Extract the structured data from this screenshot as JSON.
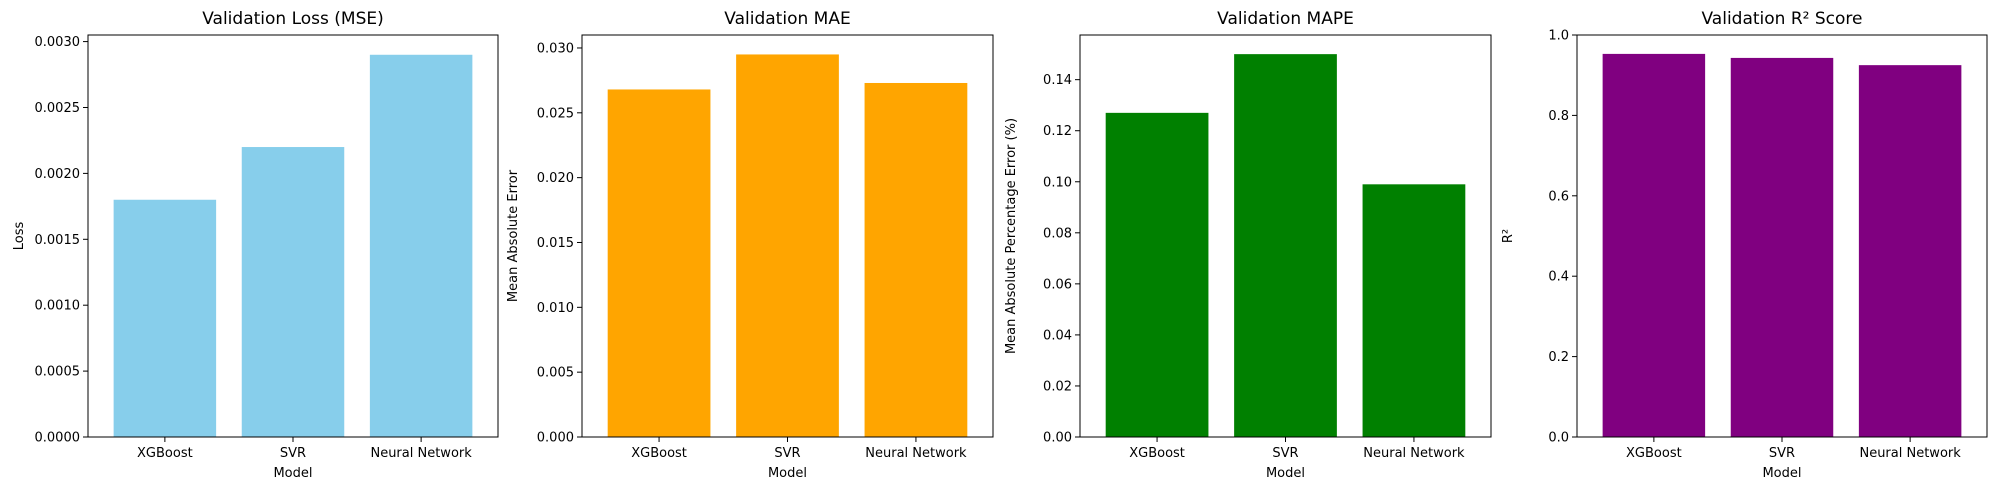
{
  "chart_data": [
    {
      "type": "bar",
      "title": "Validation Loss (MSE)",
      "xlabel": "Model",
      "ylabel": "Loss",
      "categories": [
        "XGBoost",
        "SVR",
        "Neural Network"
      ],
      "values": [
        0.0018,
        0.0022,
        0.0029
      ],
      "ylim": [
        0,
        0.00305
      ],
      "yticks": [
        "0.0000",
        "0.0005",
        "0.0010",
        "0.0015",
        "0.0020",
        "0.0025",
        "0.0030"
      ],
      "color": "#87ceeb",
      "grid": false
    },
    {
      "type": "bar",
      "title": "Validation MAE",
      "xlabel": "Model",
      "ylabel": "Mean Absolute Error",
      "categories": [
        "XGBoost",
        "SVR",
        "Neural Network"
      ],
      "values": [
        0.0268,
        0.0295,
        0.0273
      ],
      "ylim": [
        0,
        0.031
      ],
      "yticks": [
        "0.000",
        "0.005",
        "0.010",
        "0.015",
        "0.020",
        "0.025",
        "0.030"
      ],
      "color": "#ffa500",
      "grid": false
    },
    {
      "type": "bar",
      "title": "Validation MAPE",
      "xlabel": "Model",
      "ylabel": "Mean Absolute Percentage Error (%)",
      "categories": [
        "XGBoost",
        "SVR",
        "Neural Network"
      ],
      "values": [
        0.127,
        0.15,
        0.099
      ],
      "ylim": [
        0,
        0.1575
      ],
      "yticks": [
        "0.00",
        "0.02",
        "0.04",
        "0.06",
        "0.08",
        "0.10",
        "0.12",
        "0.14"
      ],
      "color": "#008000",
      "grid": false
    },
    {
      "type": "bar",
      "title": "Validation R² Score",
      "xlabel": "Model",
      "ylabel": "R²",
      "categories": [
        "XGBoost",
        "SVR",
        "Neural Network"
      ],
      "values": [
        0.953,
        0.943,
        0.925
      ],
      "ylim": [
        0,
        1.0
      ],
      "yticks": [
        "0.0",
        "0.2",
        "0.4",
        "0.6",
        "0.8",
        "1.0"
      ],
      "color": "#800080",
      "grid": false
    }
  ]
}
